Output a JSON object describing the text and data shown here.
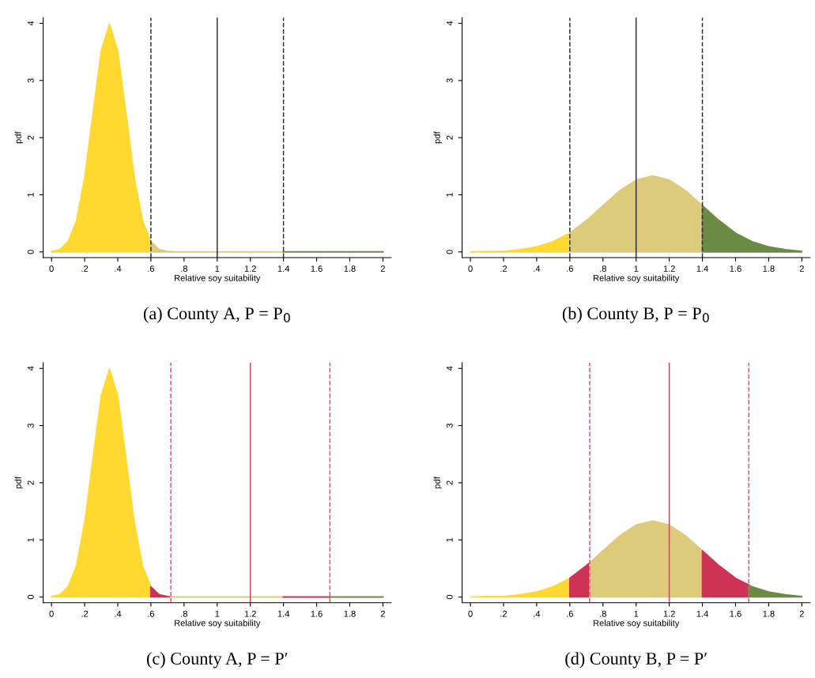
{
  "chart_data": [
    {
      "type": "area",
      "title": "(a) County A, P = P$_{0}$",
      "xlabel": "Relative soy suitability",
      "ylabel": "pdf",
      "xlim": [
        -0.05,
        2.05
      ],
      "ylim": [
        -0.1,
        4.1
      ],
      "xticks": [
        0,
        {
          "value": 0.2,
          "label": ".2"
        },
        {
          "value": 0.4,
          "label": ".4"
        },
        {
          "value": 0.6,
          "label": ".6"
        },
        {
          "value": 0.8,
          "label": ".8"
        },
        1,
        1.2,
        1.4,
        1.6,
        1.8,
        2
      ],
      "yticks": [
        0,
        1,
        2,
        3,
        4
      ],
      "grid": false,
      "legend": false,
      "series": [
        {
          "color": "#ffd92f",
          "x": [
            0,
            0.05,
            0.1,
            0.15,
            0.2,
            0.25,
            0.3,
            0.35,
            0.4,
            0.45,
            0.5,
            0.55,
            0.6
          ],
          "values": [
            0.01,
            0.04,
            0.18,
            0.54,
            1.3,
            2.42,
            3.52,
            3.99,
            3.52,
            2.42,
            1.3,
            0.54,
            0.18
          ]
        },
        {
          "color": "#dccb7a",
          "x": [
            0.6,
            0.65,
            0.7,
            0.75,
            0.8,
            1.0,
            1.4
          ],
          "values": [
            0.18,
            0.04,
            0.01,
            0,
            0,
            0,
            0
          ]
        },
        {
          "type": "line",
          "color": "#6b8b45",
          "x": [
            1.4,
            2.0
          ],
          "values": [
            0,
            0
          ]
        }
      ],
      "ref_lines": [
        {
          "axis": "x",
          "value": 0.6,
          "line_style": "dashed",
          "color": "#333333"
        },
        {
          "axis": "x",
          "value": 1.0,
          "line_style": "solid",
          "color": "#333333"
        },
        {
          "axis": "x",
          "value": 1.4,
          "line_style": "dashed",
          "color": "#333333"
        }
      ]
    },
    {
      "type": "area",
      "title": "(b) County B, P = P$_{0}$",
      "xlabel": "Relative soy suitability",
      "ylabel": "pdf",
      "xlim": [
        -0.05,
        2.05
      ],
      "ylim": [
        -0.1,
        4.1
      ],
      "xticks": [
        0,
        {
          "value": 0.2,
          "label": ".2"
        },
        {
          "value": 0.4,
          "label": ".4"
        },
        {
          "value": 0.6,
          "label": ".6"
        },
        {
          "value": 0.8,
          "label": ".8"
        },
        1,
        1.2,
        1.4,
        1.6,
        1.8,
        2
      ],
      "yticks": [
        0,
        1,
        2,
        3,
        4
      ],
      "grid": false,
      "legend": false,
      "series": [
        {
          "color": "#ffd92f",
          "x": [
            0,
            0.1,
            0.2,
            0.3,
            0.4,
            0.5,
            0.6
          ],
          "values": [
            0.0,
            0.01,
            0.01,
            0.04,
            0.09,
            0.18,
            0.33
          ]
        },
        {
          "color": "#dccb7a",
          "x": [
            0.6,
            0.7,
            0.8,
            0.9,
            1.0,
            1.1,
            1.2,
            1.3,
            1.4
          ],
          "values": [
            0.33,
            0.55,
            0.81,
            1.07,
            1.26,
            1.33,
            1.26,
            1.07,
            0.81
          ]
        },
        {
          "color": "#6b8b45",
          "x": [
            1.4,
            1.5,
            1.6,
            1.7,
            1.8,
            1.9,
            2.0
          ],
          "values": [
            0.81,
            0.55,
            0.33,
            0.18,
            0.09,
            0.04,
            0.01
          ]
        }
      ],
      "ref_lines": [
        {
          "axis": "x",
          "value": 0.6,
          "line_style": "dashed",
          "color": "#333333"
        },
        {
          "axis": "x",
          "value": 1.0,
          "line_style": "solid",
          "color": "#333333"
        },
        {
          "axis": "x",
          "value": 1.4,
          "line_style": "dashed",
          "color": "#333333"
        }
      ]
    },
    {
      "type": "area",
      "title": "(c) County A, P = P′",
      "xlabel": "Relative soy suitability",
      "ylabel": "pdf",
      "xlim": [
        -0.05,
        2.05
      ],
      "ylim": [
        -0.1,
        4.1
      ],
      "xticks": [
        0,
        {
          "value": 0.2,
          "label": ".2"
        },
        {
          "value": 0.4,
          "label": ".4"
        },
        {
          "value": 0.6,
          "label": ".6"
        },
        {
          "value": 0.8,
          "label": ".8"
        },
        1,
        1.2,
        1.4,
        1.6,
        1.8,
        2
      ],
      "yticks": [
        0,
        1,
        2,
        3,
        4
      ],
      "grid": false,
      "legend": false,
      "series": [
        {
          "color": "#ffd92f",
          "x": [
            0,
            0.05,
            0.1,
            0.15,
            0.2,
            0.25,
            0.3,
            0.35,
            0.4,
            0.45,
            0.5,
            0.55,
            0.6
          ],
          "values": [
            0.01,
            0.04,
            0.18,
            0.54,
            1.3,
            2.42,
            3.52,
            3.99,
            3.52,
            2.42,
            1.3,
            0.54,
            0.18
          ]
        },
        {
          "color": "#cc3355",
          "x": [
            0.6,
            0.65,
            0.7,
            0.72
          ],
          "values": [
            0.18,
            0.04,
            0.01,
            0
          ]
        },
        {
          "type": "line",
          "color": "#dccb7a",
          "x": [
            0.72,
            0.8,
            1.0,
            1.4
          ],
          "values": [
            0,
            0,
            0,
            0
          ]
        },
        {
          "type": "line",
          "color": "#cc3355",
          "x": [
            1.4,
            1.68
          ],
          "values": [
            0,
            0
          ]
        },
        {
          "type": "line",
          "color": "#6b8b45",
          "x": [
            1.68,
            2.0
          ],
          "values": [
            0,
            0
          ]
        }
      ],
      "ref_lines": [
        {
          "axis": "x",
          "value": 0.72,
          "line_style": "dashed",
          "color": "#e05577"
        },
        {
          "axis": "x",
          "value": 1.2,
          "line_style": "solid",
          "color": "#d04466"
        },
        {
          "axis": "x",
          "value": 1.68,
          "line_style": "dashed",
          "color": "#e05577"
        }
      ]
    },
    {
      "type": "area",
      "title": "(d) County B, P = P′",
      "xlabel": "Relative soy suitability",
      "ylabel": "pdf",
      "xlim": [
        -0.05,
        2.05
      ],
      "ylim": [
        -0.1,
        4.1
      ],
      "xticks": [
        0,
        {
          "value": 0.2,
          "label": ".2"
        },
        {
          "value": 0.4,
          "label": ".4"
        },
        {
          "value": 0.6,
          "label": ".6"
        },
        {
          "value": 0.8,
          "label": ".8"
        },
        1,
        1.2,
        1.4,
        1.6,
        1.8,
        2
      ],
      "yticks": [
        0,
        1,
        2,
        3,
        4
      ],
      "grid": false,
      "legend": false,
      "series": [
        {
          "color": "#ffd92f",
          "x": [
            0,
            0.1,
            0.2,
            0.3,
            0.4,
            0.5,
            0.6
          ],
          "values": [
            0.0,
            0.01,
            0.01,
            0.04,
            0.09,
            0.18,
            0.33
          ]
        },
        {
          "color": "#cc3355",
          "x": [
            0.6,
            0.7,
            0.72
          ],
          "values": [
            0.33,
            0.55,
            0.6
          ]
        },
        {
          "color": "#dccb7a",
          "x": [
            0.72,
            0.8,
            0.9,
            1.0,
            1.1,
            1.2,
            1.3,
            1.4
          ],
          "values": [
            0.6,
            0.81,
            1.07,
            1.26,
            1.33,
            1.26,
            1.07,
            0.81
          ]
        },
        {
          "color": "#cc3355",
          "x": [
            1.4,
            1.5,
            1.6,
            1.68
          ],
          "values": [
            0.81,
            0.55,
            0.33,
            0.21
          ]
        },
        {
          "color": "#6b8b45",
          "x": [
            1.68,
            1.7,
            1.8,
            1.9,
            2.0
          ],
          "values": [
            0.21,
            0.18,
            0.09,
            0.04,
            0.01
          ]
        }
      ],
      "ref_lines": [
        {
          "axis": "x",
          "value": 0.72,
          "line_style": "dashed",
          "color": "#e05577"
        },
        {
          "axis": "x",
          "value": 1.2,
          "line_style": "solid",
          "color": "#d04466"
        },
        {
          "axis": "x",
          "value": 1.68,
          "line_style": "dashed",
          "color": "#e05577"
        }
      ]
    }
  ]
}
